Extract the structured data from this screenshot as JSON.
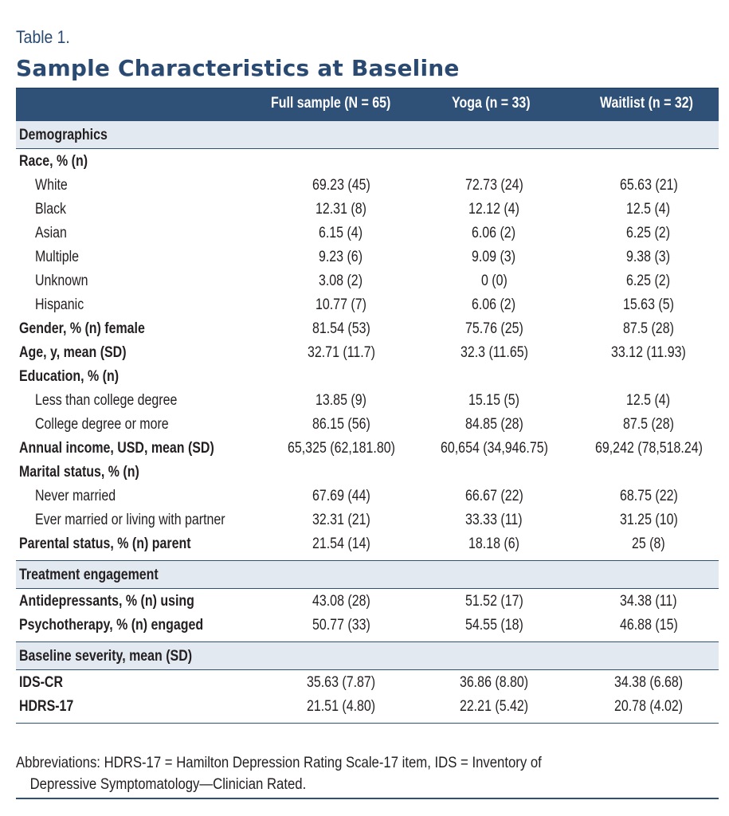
{
  "table_label": "Table 1.",
  "title": "Sample Characteristics at Baseline",
  "columns": [
    "",
    "Full sample (N = 65)",
    "Yoga (n = 33)",
    "Waitlist (n = 32)"
  ],
  "sections": [
    {
      "heading": "Demographics",
      "rows": [
        {
          "label": "Race, % (n)",
          "style": "bold",
          "values": [
            "",
            "",
            ""
          ]
        },
        {
          "label": "White",
          "style": "sub",
          "values": [
            "69.23 (45)",
            "72.73 (24)",
            "65.63 (21)"
          ]
        },
        {
          "label": "Black",
          "style": "sub",
          "values": [
            "12.31 (8)",
            "12.12 (4)",
            "12.5 (4)"
          ]
        },
        {
          "label": "Asian",
          "style": "sub",
          "values": [
            "6.15 (4)",
            "6.06 (2)",
            "6.25 (2)"
          ]
        },
        {
          "label": "Multiple",
          "style": "sub",
          "values": [
            "9.23 (6)",
            "9.09 (3)",
            "9.38 (3)"
          ]
        },
        {
          "label": "Unknown",
          "style": "sub",
          "values": [
            "3.08 (2)",
            "0 (0)",
            "6.25 (2)"
          ]
        },
        {
          "label": "Hispanic",
          "style": "sub",
          "values": [
            "10.77 (7)",
            "6.06 (2)",
            "15.63 (5)"
          ]
        },
        {
          "label": "Gender, % (n) female",
          "style": "bold",
          "values": [
            "81.54 (53)",
            "75.76 (25)",
            "87.5 (28)"
          ]
        },
        {
          "label": "Age, y, mean (SD)",
          "style": "bold",
          "values": [
            "32.71 (11.7)",
            "32.3 (11.65)",
            "33.12 (11.93)"
          ]
        },
        {
          "label": "Education, % (n)",
          "style": "bold",
          "values": [
            "",
            "",
            ""
          ]
        },
        {
          "label": "Less than college degree",
          "style": "sub",
          "values": [
            "13.85 (9)",
            "15.15 (5)",
            "12.5 (4)"
          ]
        },
        {
          "label": "College degree or more",
          "style": "sub",
          "values": [
            "86.15 (56)",
            "84.85 (28)",
            "87.5 (28)"
          ]
        },
        {
          "label": "Annual income, USD, mean (SD)",
          "style": "bold",
          "values": [
            "65,325 (62,181.80)",
            "60,654 (34,946.75)",
            "69,242 (78,518.24)"
          ]
        },
        {
          "label": "Marital status, % (n)",
          "style": "bold",
          "values": [
            "",
            "",
            ""
          ]
        },
        {
          "label": "Never married",
          "style": "sub",
          "values": [
            "67.69 (44)",
            "66.67 (22)",
            "68.75 (22)"
          ]
        },
        {
          "label": "Ever married or living with partner",
          "style": "sub",
          "values": [
            "32.31 (21)",
            "33.33 (11)",
            "31.25 (10)"
          ]
        },
        {
          "label": "Parental status, % (n) parent",
          "style": "bold",
          "values": [
            "21.54 (14)",
            "18.18 (6)",
            "25 (8)"
          ]
        }
      ]
    },
    {
      "heading": "Treatment engagement",
      "rows": [
        {
          "label": "Antidepressants, % (n) using",
          "style": "bold",
          "values": [
            "43.08 (28)",
            "51.52 (17)",
            "34.38 (11)"
          ]
        },
        {
          "label": "Psychotherapy, % (n) engaged",
          "style": "bold",
          "values": [
            "50.77 (33)",
            "54.55 (18)",
            "46.88 (15)"
          ]
        }
      ]
    },
    {
      "heading": "Baseline severity, mean (SD)",
      "rows": [
        {
          "label": "IDS-CR",
          "style": "bold",
          "values": [
            "35.63 (7.87)",
            "36.86 (8.80)",
            "34.38 (6.68)"
          ]
        },
        {
          "label": "HDRS-17",
          "style": "bold",
          "values": [
            "21.51 (4.80)",
            "22.21 (5.42)",
            "20.78 (4.02)"
          ]
        }
      ]
    }
  ],
  "footnote": {
    "line1": "Abbreviations: HDRS-17 = Hamilton Depression Rating Scale-17 item, IDS = Inventory of",
    "line2": "Depressive Symptomatology—Clinician Rated."
  },
  "colors": {
    "header_bg": "#2f5077",
    "section_bg": "#e3e9f1",
    "title": "#2b4a72"
  }
}
